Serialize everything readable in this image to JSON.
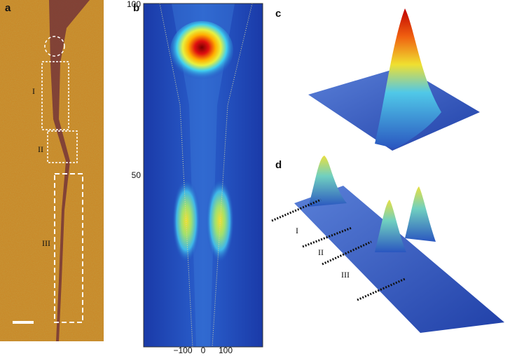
{
  "panels": {
    "a": {
      "label": "a",
      "regions": [
        "I",
        "II",
        "III"
      ]
    },
    "b": {
      "label": "b",
      "y_axis_ticks": [
        "100",
        "50"
      ],
      "x_axis_ticks": [
        "−100",
        "0",
        "100"
      ]
    },
    "c": {
      "label": "c"
    },
    "d": {
      "label": "d",
      "cut_labels": [
        "I",
        "II",
        "III"
      ]
    }
  }
}
